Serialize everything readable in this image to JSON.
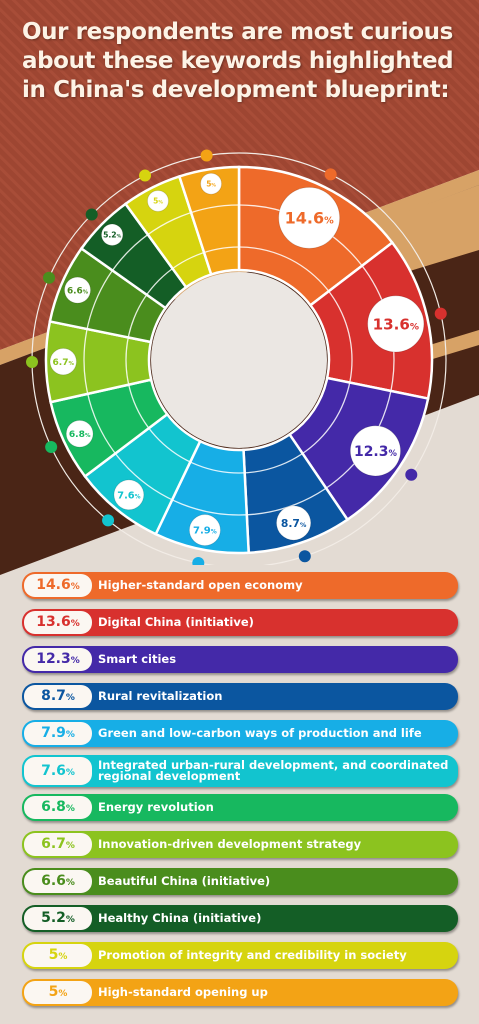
{
  "title": "Our respondents are most curious about these keywords highlighted in China's development blueprint:",
  "chart_data": {
    "type": "pie",
    "categories": [
      "Higher-standard open economy",
      "Digital China (initiative)",
      "Smart cities",
      "Rural revitalization",
      "Green and low-carbon ways of production and life",
      "Integrated urban-rural development, and coordinated regional development",
      "Energy revolution",
      "Innovation-driven development strategy",
      "Beautiful China (initiative)",
      "Healthy China (initiative)",
      "Promotion of integrity and credibility in society",
      "High-standard opening up"
    ],
    "values": [
      14.6,
      13.6,
      12.3,
      8.7,
      7.9,
      7.6,
      6.8,
      6.7,
      6.6,
      5.2,
      5,
      5
    ],
    "value_labels": [
      "14.6",
      "13.6",
      "12.3",
      "8.7",
      "7.9",
      "7.6",
      "6.8",
      "6.7",
      "6.6",
      "5.2",
      "5",
      "5"
    ],
    "unit": "%",
    "colors": [
      "#ee6a2a",
      "#d8312e",
      "#4429a8",
      "#0b56a0",
      "#17aee6",
      "#12c4cf",
      "#17b85f",
      "#8cc31f",
      "#4a8d1d",
      "#145e26",
      "#d6d40f",
      "#f3a315"
    ],
    "style": "donut"
  }
}
